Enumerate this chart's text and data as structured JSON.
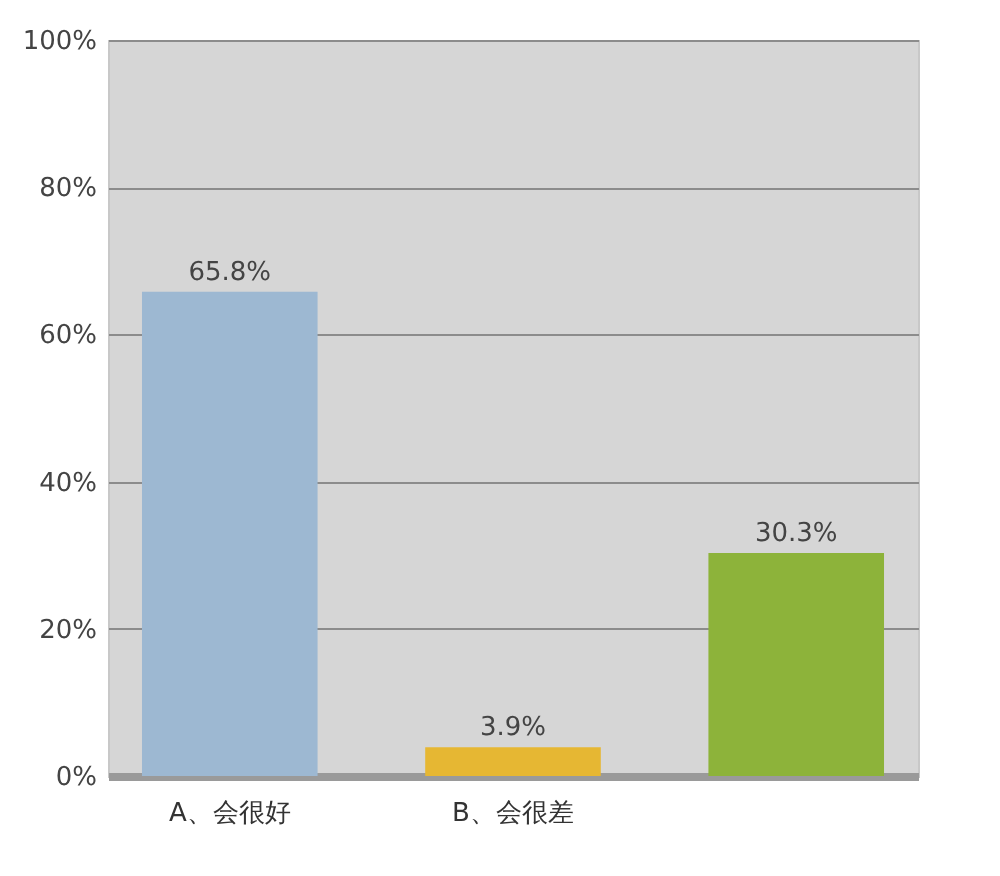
{
  "chart_data": {
    "type": "bar",
    "categories": [
      "A、会很好",
      "B、会很差",
      null
    ],
    "values": [
      65.8,
      3.9,
      30.3
    ],
    "colors": [
      "#9db8d2",
      "#e6b733",
      "#8db33a"
    ],
    "value_labels": [
      "65.8%",
      "3.9%",
      "30.3%"
    ],
    "ylim": [
      0,
      100
    ],
    "yticks": [
      {
        "value": 0,
        "label": "0%"
      },
      {
        "value": 20,
        "label": "20%"
      },
      {
        "value": 40,
        "label": "40%"
      },
      {
        "value": 60,
        "label": "60%"
      },
      {
        "value": 80,
        "label": "80%"
      },
      {
        "value": 100,
        "label": "100%"
      }
    ],
    "grid": "y"
  }
}
